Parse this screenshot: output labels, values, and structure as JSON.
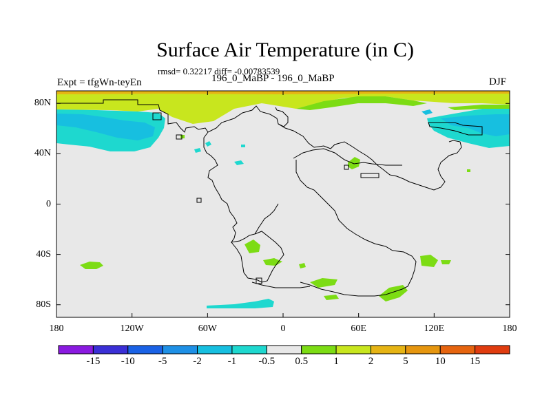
{
  "title": "Surface Air Temperature (in C)",
  "stats": "rmsd= 0.32217 diff= -0.00783539",
  "experiment": "Expt = tfgWn-teyEn",
  "runs": "196_0_MaBP - 196_0_MaBP",
  "season": "DJF",
  "map": {
    "lon_range": [
      -180,
      180
    ],
    "lat_range": [
      -90,
      90
    ],
    "background_fill": "#e8e8e8",
    "x_ticks": [
      {
        "lon": -180,
        "label": "180"
      },
      {
        "lon": -120,
        "label": "120W"
      },
      {
        "lon": -60,
        "label": "60W"
      },
      {
        "lon": 0,
        "label": "0"
      },
      {
        "lon": 60,
        "label": "60E"
      },
      {
        "lon": 120,
        "label": "120E"
      },
      {
        "lon": 180,
        "label": "180"
      }
    ],
    "y_ticks": [
      {
        "lat": 80,
        "label": "80N"
      },
      {
        "lat": 40,
        "label": "40N"
      },
      {
        "lat": 0,
        "label": "0"
      },
      {
        "lat": -40,
        "label": "40S"
      },
      {
        "lat": -80,
        "label": "80S"
      }
    ]
  },
  "colorbar": {
    "colors": [
      "#8a1ae0",
      "#3a2fd6",
      "#1a62e6",
      "#1e90e6",
      "#17bfe0",
      "#1ed8cf",
      "#e8e8e8",
      "#7cdc14",
      "#c8e61e",
      "#e6b414",
      "#e6960f",
      "#e6640f",
      "#e03c0f"
    ],
    "labels": [
      "-15",
      "-10",
      "-5",
      "-2",
      "-1",
      "-0.5",
      "0.5",
      "1",
      "2",
      "5",
      "10",
      "15"
    ]
  }
}
